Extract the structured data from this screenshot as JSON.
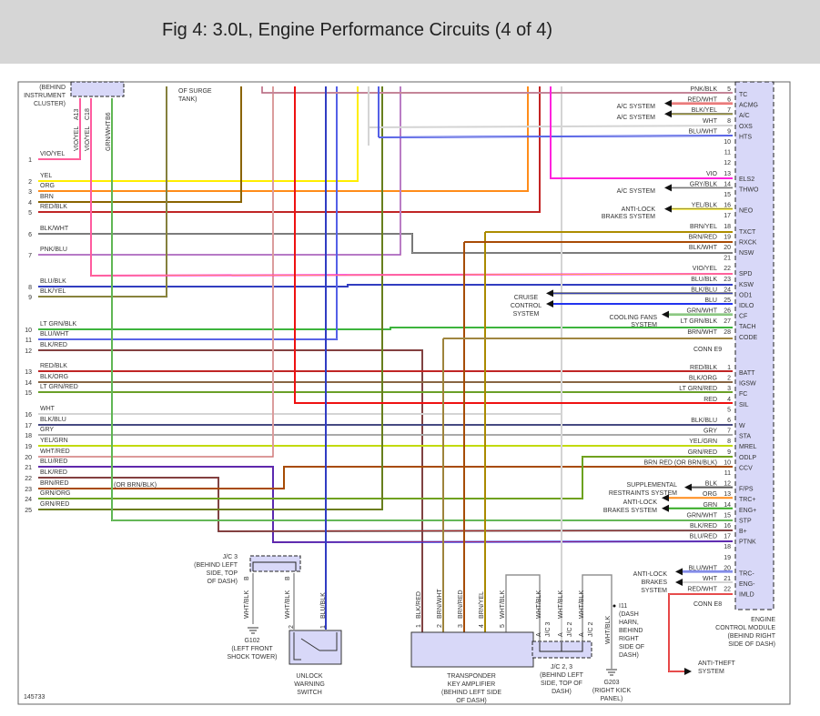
{
  "title": "Fig 4: 3.0L, Engine Performance Circuits (4 of 4)",
  "figure_id": "145733",
  "wire_colors": {
    "VIO": "#ff22dd",
    "YEL": "#ffee00",
    "ORG": "#ff8c1a",
    "BRN": "#8a6400",
    "RED": "#ee1111",
    "BLK": "#555555",
    "PNK": "#f59ab5",
    "BLU": "#2233ee",
    "LT GRN": "#33dd33",
    "GRN": "#33aa22",
    "WHT": "#d4d4d4",
    "GRY": "#aaaaaa"
  },
  "instrument_cluster": {
    "label": [
      "(BEHIND",
      "INSTRUMENT",
      "CLUSTER)"
    ],
    "pins": [
      {
        "pin": "A13",
        "wire": "VIO/YEL"
      },
      {
        "pin": "C18",
        "wire": "VIO/YEL"
      },
      {
        "pin": "B6",
        "wire": "GRN/WHT"
      }
    ]
  },
  "surge_tank_label": [
    "OF SURGE",
    "TANK)"
  ],
  "left_rows": [
    {
      "num": "1",
      "wire": "VIO/YEL"
    },
    {
      "num": "2",
      "wire": "YEL"
    },
    {
      "num": "3",
      "wire": "ORG"
    },
    {
      "num": "4",
      "wire": "BRN"
    },
    {
      "num": "5",
      "wire": "RED/BLK"
    },
    {
      "num": "6",
      "wire": "BLK/WHT"
    },
    {
      "num": "7",
      "wire": "PNK/BLU"
    },
    {
      "num": "8",
      "wire": "BLU/BLK"
    },
    {
      "num": "9",
      "wire": "BLK/YEL"
    },
    {
      "num": "10",
      "wire": "LT GRN/BLK"
    },
    {
      "num": "11",
      "wire": "BLU/WHT"
    },
    {
      "num": "12",
      "wire": "BLK/RED"
    },
    {
      "num": "13",
      "wire": "RED/BLK"
    },
    {
      "num": "14",
      "wire": "BLK/ORG"
    },
    {
      "num": "15",
      "wire": "LT GRN/RED"
    },
    {
      "num": "16",
      "wire": "WHT"
    },
    {
      "num": "17",
      "wire": "BLK/BLU"
    },
    {
      "num": "18",
      "wire": "GRY"
    },
    {
      "num": "19",
      "wire": "YEL/GRN"
    },
    {
      "num": "20",
      "wire": "WHT/RED"
    },
    {
      "num": "21",
      "wire": "BLU/RED"
    },
    {
      "num": "22",
      "wire": "BLK/RED"
    },
    {
      "num": "23",
      "wire": "BRN/RED"
    },
    {
      "num": "24",
      "wire": "GRN/ORG"
    },
    {
      "num": "25",
      "wire": "GRN/RED"
    }
  ],
  "left_note": "(OR BRN/BLK)",
  "conn_e9": {
    "label": "CONN E9",
    "pins": [
      {
        "num": "5",
        "wire": "PNK/BLK",
        "func": "TC"
      },
      {
        "num": "6",
        "wire": "RED/WHT",
        "func": "ACMG"
      },
      {
        "num": "7",
        "wire": "BLK/YEL",
        "func": "A/C"
      },
      {
        "num": "8",
        "wire": "WHT",
        "func": "OXS"
      },
      {
        "num": "9",
        "wire": "BLU/WHT",
        "func": "HTS"
      },
      {
        "num": "10",
        "wire": "",
        "func": ""
      },
      {
        "num": "11",
        "wire": "",
        "func": ""
      },
      {
        "num": "12",
        "wire": "",
        "func": ""
      },
      {
        "num": "13",
        "wire": "VIO",
        "func": "ELS2"
      },
      {
        "num": "14",
        "wire": "GRY/BLK",
        "func": "THWO"
      },
      {
        "num": "15",
        "wire": "",
        "func": ""
      },
      {
        "num": "16",
        "wire": "YEL/BLK",
        "func": "NEO"
      },
      {
        "num": "17",
        "wire": "",
        "func": ""
      },
      {
        "num": "18",
        "wire": "BRN/YEL",
        "func": "TXCT"
      },
      {
        "num": "19",
        "wire": "BRN/RED",
        "func": "RXCK"
      },
      {
        "num": "20",
        "wire": "BLK/WHT",
        "func": "NSW"
      },
      {
        "num": "21",
        "wire": "",
        "func": ""
      },
      {
        "num": "22",
        "wire": "VIO/YEL",
        "func": "SPD"
      },
      {
        "num": "23",
        "wire": "BLU/BLK",
        "func": "KSW"
      },
      {
        "num": "24",
        "wire": "BLK/BLU",
        "func": "OD1"
      },
      {
        "num": "25",
        "wire": "BLU",
        "func": "IDLO"
      },
      {
        "num": "26",
        "wire": "GRN/WHT",
        "func": "CF"
      },
      {
        "num": "27",
        "wire": "LT GRN/BLK",
        "func": "TACH"
      },
      {
        "num": "28",
        "wire": "BRN/WHT",
        "func": "CODE"
      }
    ]
  },
  "conn_e8": {
    "label": "CONN E8",
    "pins": [
      {
        "num": "1",
        "wire": "RED/BLK",
        "func": "BATT"
      },
      {
        "num": "2",
        "wire": "BLK/ORG",
        "func": "IGSW"
      },
      {
        "num": "3",
        "wire": "LT GRN/RED",
        "func": "FC"
      },
      {
        "num": "4",
        "wire": "RED",
        "func": "SIL"
      },
      {
        "num": "5",
        "wire": "",
        "func": ""
      },
      {
        "num": "6",
        "wire": "BLK/BLU",
        "func": "W"
      },
      {
        "num": "7",
        "wire": "GRY",
        "func": "STA"
      },
      {
        "num": "8",
        "wire": "YEL/GRN",
        "func": "MREL"
      },
      {
        "num": "9",
        "wire": "GRN/RED",
        "func": "ODLP"
      },
      {
        "num": "10",
        "wire": "BRN RED (OR BRN/BLK)",
        "func": "CCV"
      },
      {
        "num": "11",
        "wire": "",
        "func": ""
      },
      {
        "num": "12",
        "wire": "BLK",
        "func": "F/PS"
      },
      {
        "num": "13",
        "wire": "ORG",
        "func": "TRC+"
      },
      {
        "num": "14",
        "wire": "GRN",
        "func": "ENG+"
      },
      {
        "num": "15",
        "wire": "GRN/WHT",
        "func": "STP"
      },
      {
        "num": "16",
        "wire": "BLK/RED",
        "func": "B+"
      },
      {
        "num": "17",
        "wire": "BLU/RED",
        "func": "PTNK"
      },
      {
        "num": "18",
        "wire": "",
        "func": ""
      },
      {
        "num": "19",
        "wire": "",
        "func": ""
      },
      {
        "num": "20",
        "wire": "BLU/WHT",
        "func": "TRC-"
      },
      {
        "num": "21",
        "wire": "WHT",
        "func": "ENG-"
      },
      {
        "num": "22",
        "wire": "RED/WHT",
        "func": "IMLD"
      }
    ]
  },
  "destinations": {
    "ac_system": "A/C SYSTEM",
    "abs_e9": [
      "ANTI-LOCK",
      "BRAKES SYSTEM"
    ],
    "cruise": [
      "CRUISE",
      "CONTROL",
      "SYSTEM"
    ],
    "cooling": [
      "COOLING FANS",
      "SYSTEM"
    ],
    "srs": [
      "SUPPLEMENTAL",
      "RESTRAINTS SYSTEM"
    ],
    "abs_e8a": [
      "ANTI-LOCK",
      "BRAKES SYSTEM"
    ],
    "abs_e8b": [
      "ANTI-LOCK",
      "BRAKES",
      "SYSTEM"
    ],
    "anti_theft": [
      "ANTI-THEFT",
      "SYSTEM"
    ]
  },
  "ecm_label": [
    "ENGINE",
    "CONTROL MODULE",
    "(BEHIND RIGHT",
    "SIDE OF DASH)"
  ],
  "jc3": {
    "label": [
      "J/C 3",
      "(BEHIND LEFT",
      "SIDE, TOP",
      "OF DASH)"
    ],
    "pins": [
      "B",
      "B"
    ],
    "wires": [
      "WHT/BLK",
      "WHT/BLK"
    ]
  },
  "g102": [
    "G102",
    "(LEFT FRONT",
    "SHOCK TOWER)"
  ],
  "unlock_switch": {
    "label": [
      "UNLOCK",
      "WARNING",
      "SWITCH"
    ],
    "pins": [
      {
        "num": "2"
      },
      {
        "num": "1",
        "wire": "BLU/BLK"
      }
    ]
  },
  "transponder": {
    "label": [
      "TRANSPONDER",
      "KEY AMPLIFIER",
      "(BEHIND LEFT SIDE",
      "OF DASH)"
    ],
    "pins": [
      {
        "num": "1",
        "wire": "BLK/RED"
      },
      {
        "num": "2",
        "wire": "BRN/WHT"
      },
      {
        "num": "3",
        "wire": "BRN/RED"
      },
      {
        "num": "4",
        "wire": "BRN/YEL"
      },
      {
        "num": "5",
        "wire": "WHT/BLK"
      }
    ]
  },
  "jc23": {
    "label": [
      "J/C 2, 3",
      "(BEHIND LEFT",
      "SIDE, TOP OF",
      "DASH)"
    ],
    "pins": [
      {
        "pin": "A",
        "conn": "J/C 3",
        "wire": "WHT/BLK"
      },
      {
        "pin": "A",
        "conn": "J/C 2",
        "wire": "WHT/BLK"
      },
      {
        "pin": "A",
        "conn": "J/C 2",
        "wire": "WHT/BLK"
      }
    ]
  },
  "i11": [
    "I11",
    "(DASH",
    "HARN,",
    "BEHIND",
    "RIGHT",
    "SIDE OF",
    "DASH)"
  ],
  "g203": {
    "wire": "WHT/BLK",
    "label": [
      "G203",
      "(RIGHT KICK",
      "PANEL)"
    ]
  }
}
